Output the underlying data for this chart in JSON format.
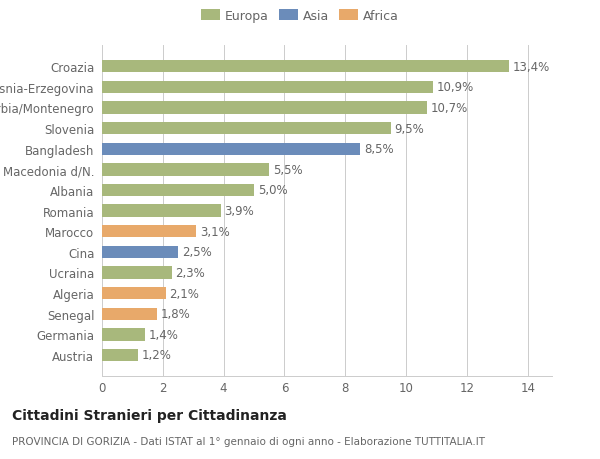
{
  "categories": [
    "Austria",
    "Germania",
    "Senegal",
    "Algeria",
    "Ucraina",
    "Cina",
    "Marocco",
    "Romania",
    "Albania",
    "Macedonia d/N.",
    "Bangladesh",
    "Slovenia",
    "Serbia/Montenegro",
    "Bosnia-Erzegovina",
    "Croazia"
  ],
  "values": [
    1.2,
    1.4,
    1.8,
    2.1,
    2.3,
    2.5,
    3.1,
    3.9,
    5.0,
    5.5,
    8.5,
    9.5,
    10.7,
    10.9,
    13.4
  ],
  "bar_colors": [
    "#a8b87c",
    "#a8b87c",
    "#e8a96a",
    "#e8a96a",
    "#a8b87c",
    "#6b8cba",
    "#e8a96a",
    "#a8b87c",
    "#a8b87c",
    "#a8b87c",
    "#6b8cba",
    "#a8b87c",
    "#a8b87c",
    "#a8b87c",
    "#a8b87c"
  ],
  "labels": [
    "1,2%",
    "1,4%",
    "1,8%",
    "2,1%",
    "2,3%",
    "2,5%",
    "3,1%",
    "3,9%",
    "5,0%",
    "5,5%",
    "8,5%",
    "9,5%",
    "10,7%",
    "10,9%",
    "13,4%"
  ],
  "title": "Cittadini Stranieri per Cittadinanza",
  "subtitle": "PROVINCIA DI GORIZIA - Dati ISTAT al 1° gennaio di ogni anno - Elaborazione TUTTITALIA.IT",
  "xlim": [
    0,
    14.8
  ],
  "xticks": [
    0,
    2,
    4,
    6,
    8,
    10,
    12,
    14
  ],
  "legend": [
    {
      "label": "Europa",
      "color": "#a8b87c"
    },
    {
      "label": "Asia",
      "color": "#6b8cba"
    },
    {
      "label": "Africa",
      "color": "#e8a96a"
    }
  ],
  "bar_height": 0.6,
  "background_color": "#ffffff",
  "grid_color": "#cccccc",
  "text_color": "#666666",
  "label_fontsize": 8.5,
  "tick_fontsize": 8.5,
  "title_fontsize": 10,
  "subtitle_fontsize": 7.5,
  "legend_fontsize": 9
}
